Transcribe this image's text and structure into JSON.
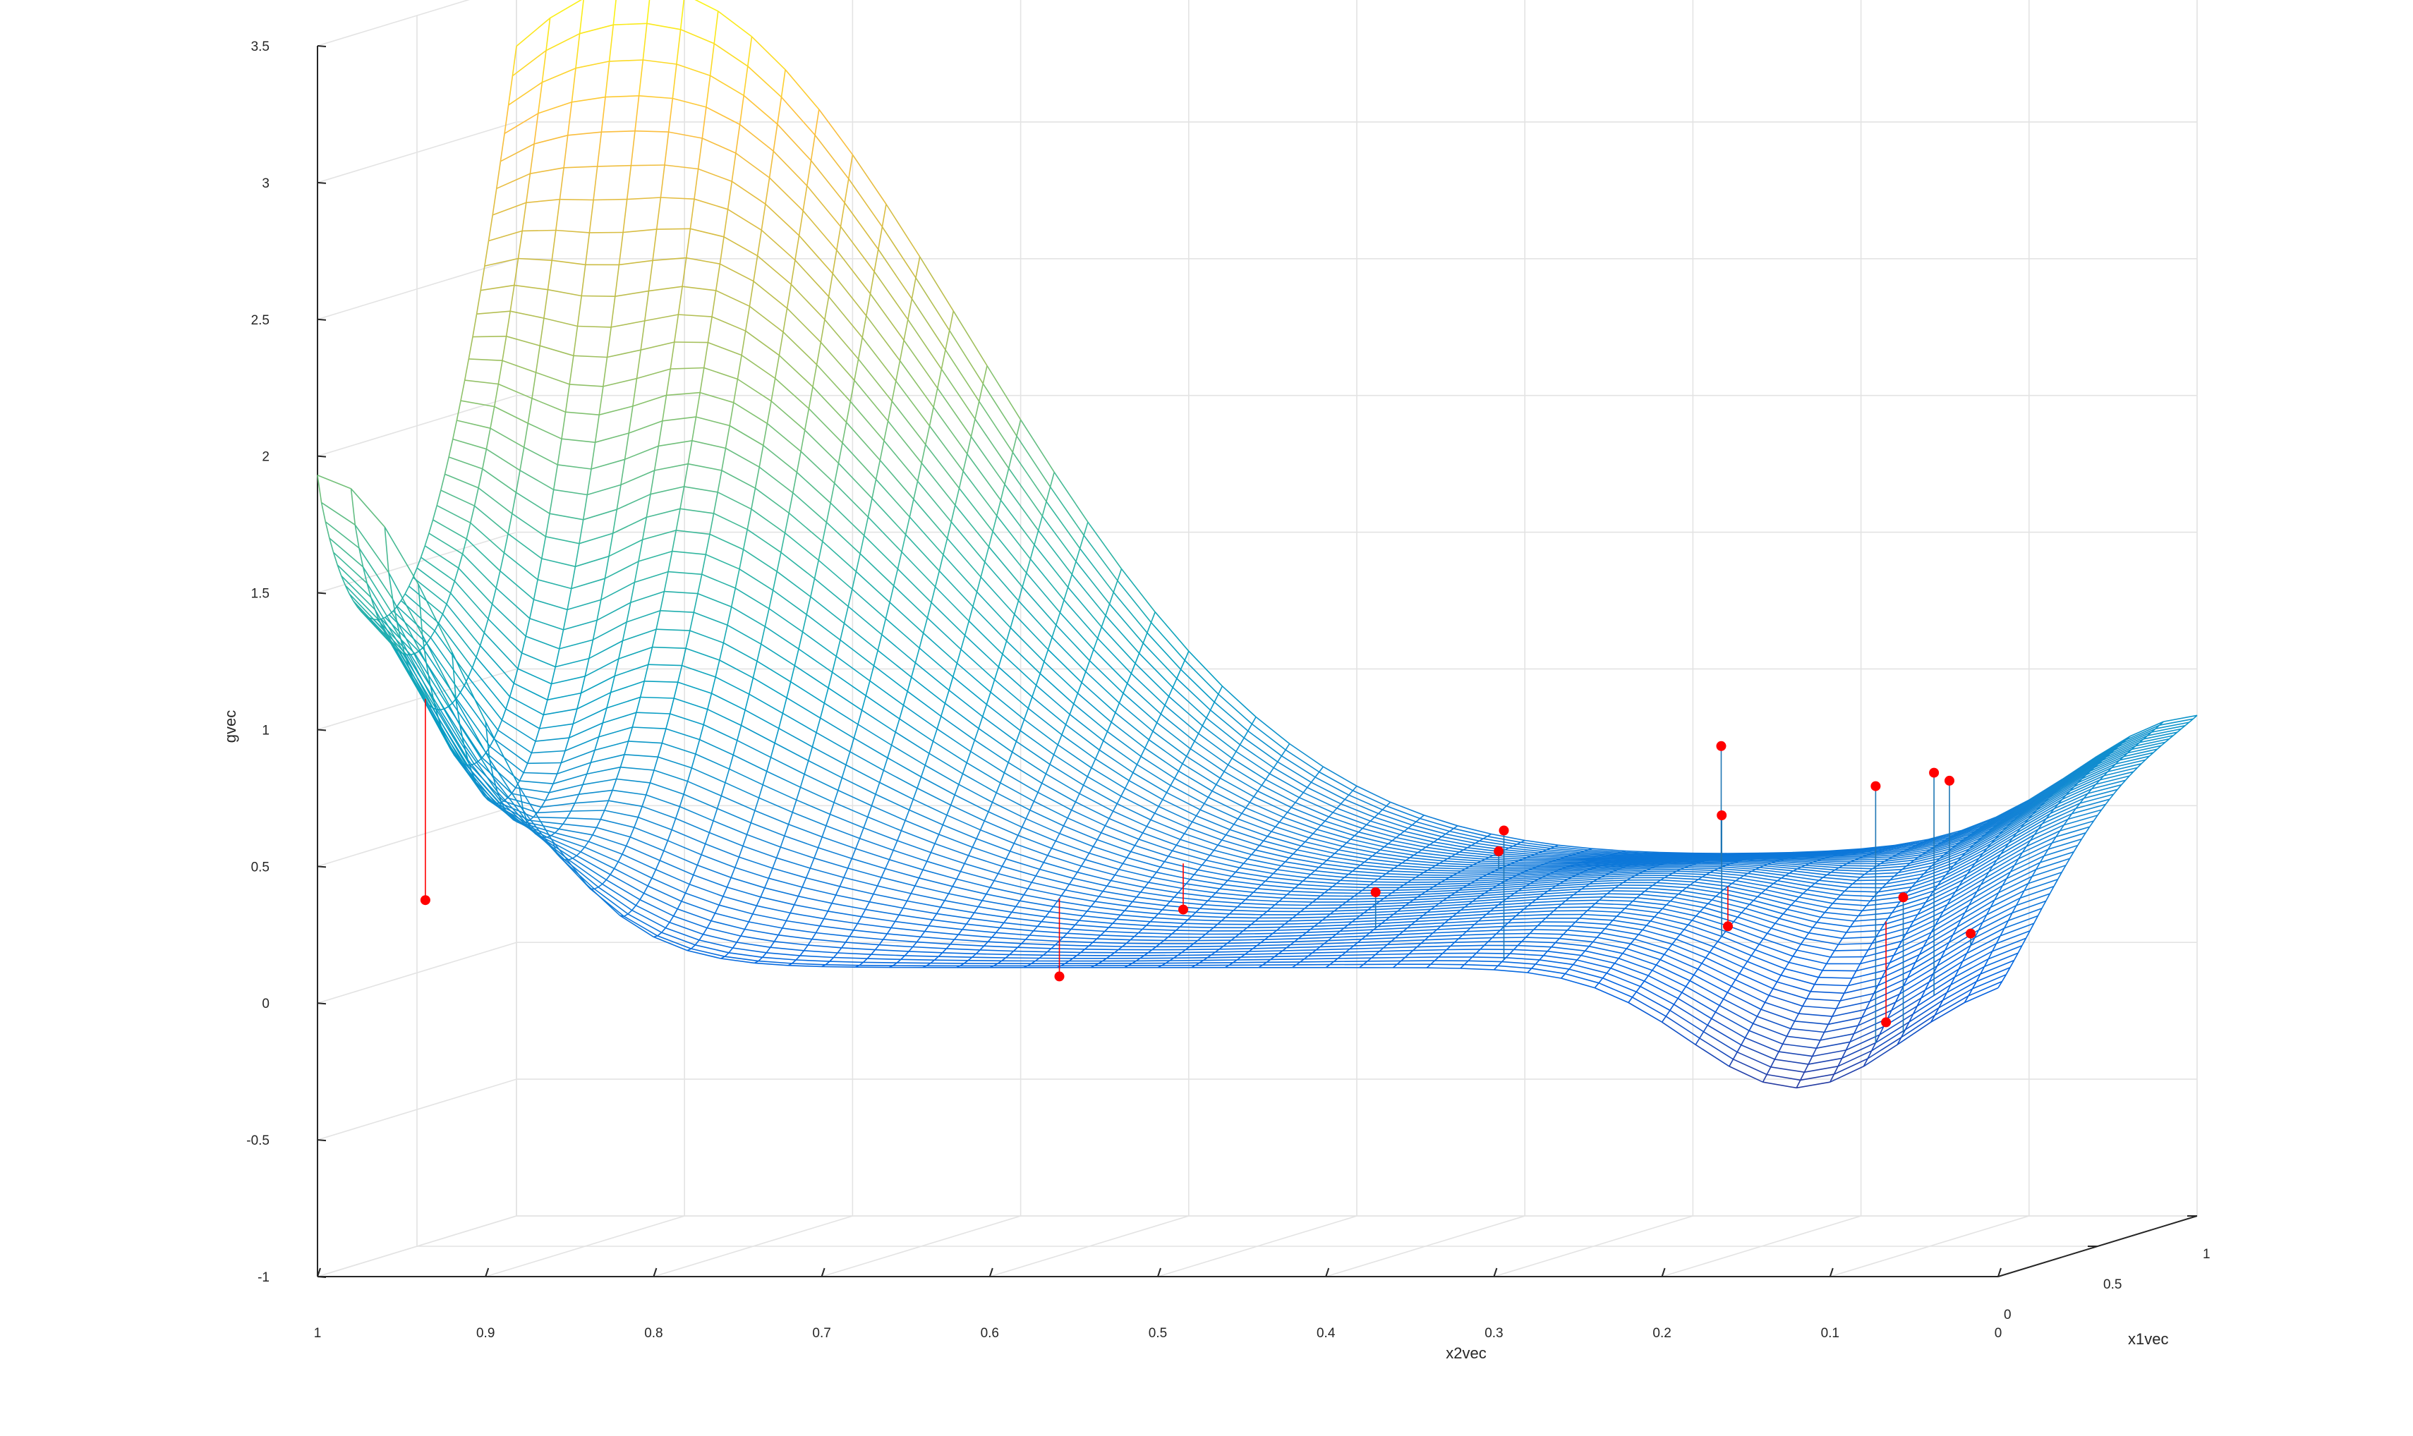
{
  "chart_data": {
    "type": "surface",
    "title": "",
    "xlabel": "x1vec",
    "ylabel": "x2vec",
    "zlabel": "gvec",
    "xlim": [
      0,
      1
    ],
    "ylim": [
      0,
      1
    ],
    "zlim": [
      -1,
      3.5
    ],
    "grid": true,
    "colormap": "parula",
    "x_ticks": [
      "0",
      "0.5",
      "1"
    ],
    "y_ticks": [
      "1",
      "0.9",
      "0.8",
      "0.7",
      "0.6",
      "0.5",
      "0.4",
      "0.3",
      "0.2",
      "0.1",
      "0"
    ],
    "z_ticks": [
      "3.5",
      "3",
      "2.5",
      "2",
      "1.5",
      "1",
      "0.5",
      "0",
      "-0.5",
      "-1"
    ],
    "surface": {
      "grid_x_count": 50,
      "grid_y_count": 50,
      "z_range": [
        -0.45,
        3.5
      ]
    },
    "points": {
      "color": "#ff0000",
      "x1": [
        0.12,
        0.55,
        0.35,
        0.25,
        0.7,
        0.72,
        0.05,
        0.5,
        0.3,
        0.6,
        0.45,
        0.06,
        0.1,
        0.03,
        0.2
      ],
      "x2": [
        0.95,
        0.55,
        0.6,
        0.4,
        0.38,
        0.25,
        0.3,
        0.22,
        0.2,
        0.1,
        0.12,
        0.08,
        0.05,
        0.06,
        0.04
      ],
      "g": [
        0.35,
        0.22,
        0.02,
        0.35,
        0.4,
        0.78,
        0.62,
        0.17,
        0.62,
        0.68,
        -0.17,
        0.78,
        0.82,
        0.38,
        0.21
      ]
    }
  }
}
